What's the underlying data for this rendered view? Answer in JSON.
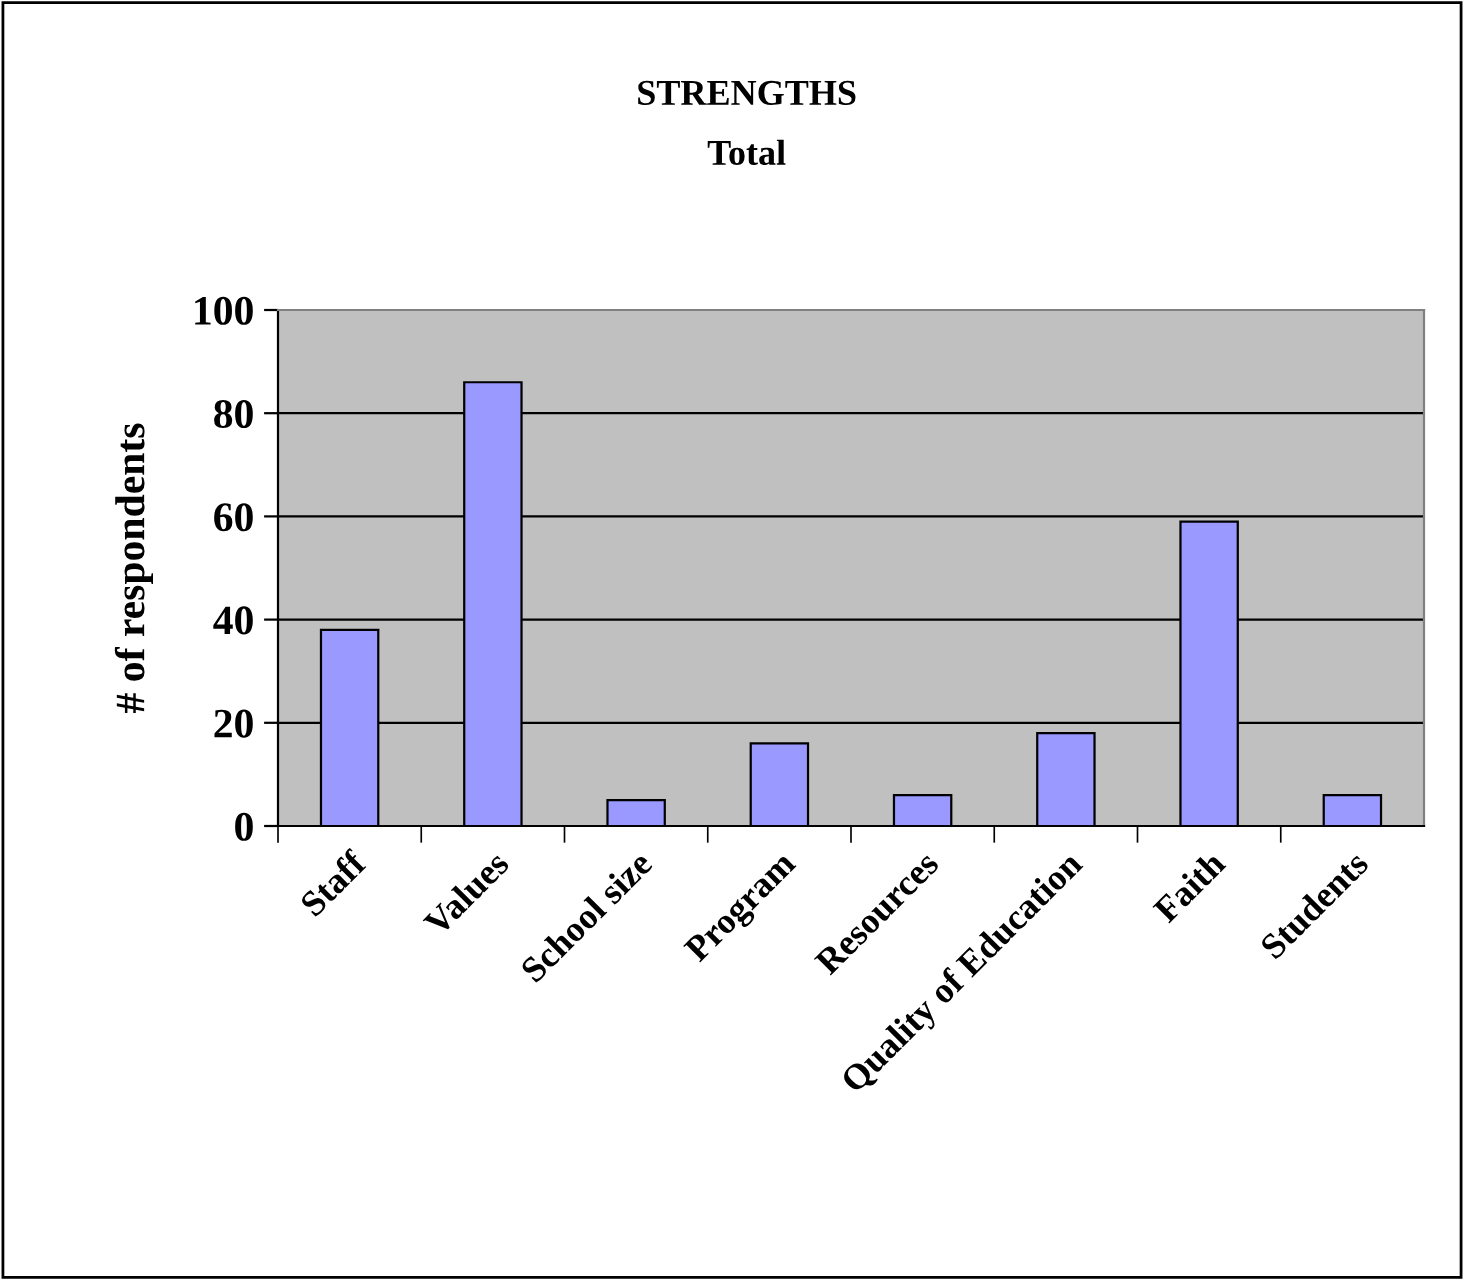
{
  "chart_data": {
    "type": "bar",
    "title": "STRENGTHS",
    "subtitle": "Total",
    "ylabel": "# of respondents",
    "categories": [
      "Staff",
      "Values",
      "School size",
      "Program",
      "Resources",
      "Quality of Education",
      "Faith",
      "Students"
    ],
    "values": [
      38,
      86,
      5,
      16,
      6,
      18,
      59,
      6
    ],
    "color": "#9999ff",
    "ylim": [
      0,
      100
    ],
    "yticks": [
      0,
      20,
      40,
      60,
      80,
      100
    ],
    "grid": "y"
  }
}
